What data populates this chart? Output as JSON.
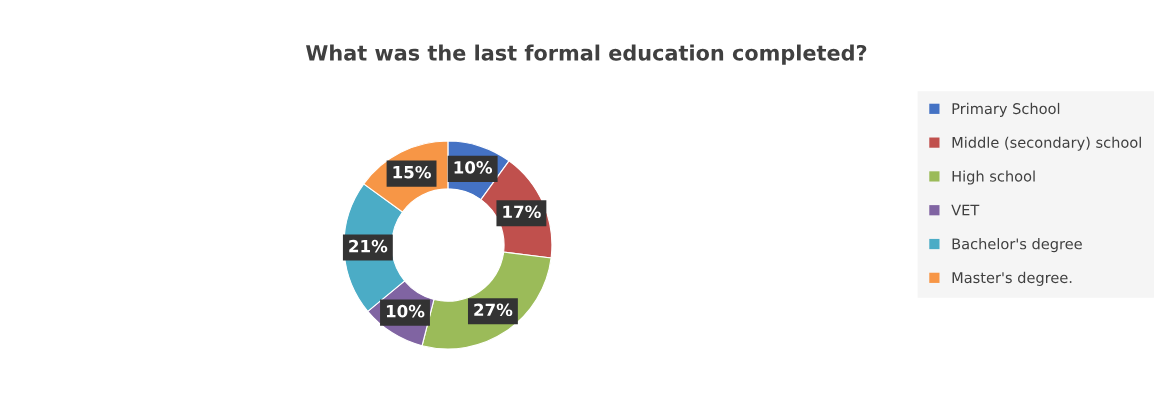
{
  "chart_data": {
    "type": "donut",
    "title": "What was the last formal education completed?",
    "categories": [
      "Primary School",
      "Middle (secondary) school",
      "High school",
      "VET",
      "Bachelor's degree",
      "Master's degree."
    ],
    "values": [
      10,
      17,
      27,
      10,
      21,
      15
    ],
    "colors": [
      "#4472c4",
      "#c0504d",
      "#9bbb59",
      "#8064a2",
      "#4bacc6",
      "#f79646"
    ],
    "value_labels": [
      "10%",
      "17%",
      "27%",
      "10%",
      "21%",
      "15%"
    ],
    "legend": "right"
  }
}
